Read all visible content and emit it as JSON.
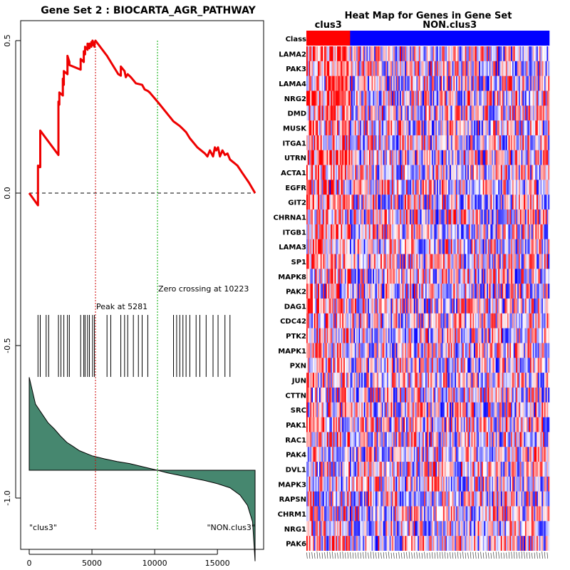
{
  "chart_data": [
    {
      "type": "line",
      "title": "Gene Set  2 : BIOCARTA_AGR_PATHWAY",
      "xlim": [
        0,
        18000
      ],
      "ylim": [
        -1.1,
        0.55
      ],
      "x_ticks": [
        0,
        5000,
        10000,
        15000
      ],
      "x_tick_labels": [
        "0",
        "5000",
        "10000",
        "15000"
      ],
      "y_ticks": [
        0.5,
        0.0,
        -0.5,
        -1.0
      ],
      "y_tick_labels": [
        "0.5",
        "0.0",
        "-0.5",
        "-1.0"
      ],
      "running_es": {
        "x": [
          0,
          700,
          700,
          820,
          820,
          880,
          880,
          2330,
          2330,
          2400,
          2400,
          2680,
          2680,
          2760,
          2760,
          3050,
          3050,
          3200,
          3200,
          4100,
          4100,
          4350,
          4350,
          4450,
          4450,
          4650,
          4650,
          4800,
          4800,
          4950,
          4950,
          5050,
          5050,
          5200,
          5200,
          5281,
          5281,
          6200,
          7100,
          7300,
          7300,
          7600,
          7700,
          7850,
          8100,
          8300,
          8500,
          9000,
          9200,
          9450,
          9600,
          10223,
          11500,
          12000,
          12250,
          12500,
          12800,
          13400,
          14000,
          14200,
          14400,
          14650,
          14800,
          14900,
          15050,
          15200,
          15400,
          15600,
          15800,
          16000,
          16300,
          16600,
          17000,
          17500,
          18000
        ],
        "y": [
          0.0,
          -0.04,
          0.09,
          0.085,
          0.09,
          0.085,
          0.205,
          0.125,
          0.3,
          0.29,
          0.33,
          0.32,
          0.375,
          0.355,
          0.4,
          0.39,
          0.45,
          0.43,
          0.42,
          0.405,
          0.44,
          0.43,
          0.465,
          0.455,
          0.48,
          0.47,
          0.49,
          0.475,
          0.49,
          0.48,
          0.495,
          0.485,
          0.5,
          0.48,
          0.49,
          0.5,
          0.5,
          0.45,
          0.39,
          0.385,
          0.415,
          0.4,
          0.38,
          0.39,
          0.38,
          0.37,
          0.36,
          0.355,
          0.34,
          0.335,
          0.33,
          0.3,
          0.235,
          0.22,
          0.21,
          0.2,
          0.18,
          0.15,
          0.13,
          0.12,
          0.14,
          0.12,
          0.15,
          0.14,
          0.15,
          0.12,
          0.14,
          0.125,
          0.13,
          0.11,
          0.1,
          0.09,
          0.065,
          0.035,
          0.0
        ]
      },
      "baseline": 0.0,
      "peak": {
        "x": 5281,
        "label": "Peak at 5281"
      },
      "zero_crossing": {
        "x": 10223,
        "label": "Zero crossing at 10223"
      },
      "hit_positions": [
        700,
        880,
        1350,
        1550,
        2330,
        2530,
        2760,
        3050,
        3200,
        4100,
        4350,
        4450,
        4650,
        4800,
        5050,
        5200,
        6200,
        6500,
        7300,
        7600,
        7850,
        8300,
        8700,
        9000,
        9450,
        11500,
        11750,
        12000,
        12250,
        12500,
        12800,
        13300,
        13600,
        14100,
        14650,
        15050,
        15600,
        16000
      ],
      "rank_metric": {
        "x": [
          0,
          500,
          1000,
          1500,
          2000,
          2500,
          3000,
          3500,
          4000,
          5000,
          6000,
          7000,
          8000,
          9000,
          10223,
          11000,
          12000,
          13000,
          14000,
          15000,
          16000,
          16800,
          17400,
          17800,
          18000
        ],
        "y": [
          0.9,
          0.64,
          0.55,
          0.46,
          0.4,
          0.33,
          0.27,
          0.23,
          0.19,
          0.14,
          0.11,
          0.085,
          0.065,
          0.035,
          0.0,
          -0.025,
          -0.05,
          -0.075,
          -0.1,
          -0.13,
          -0.17,
          -0.24,
          -0.34,
          -0.5,
          -0.88
        ]
      },
      "left_label": "\"clus3\"",
      "right_label": "\"NON.clus3\"",
      "line_color": "#ee0000",
      "fill_color": "#46876f"
    },
    {
      "type": "heatmap",
      "title": "Heat Map for Genes in Gene Set",
      "class_row_label": "Class",
      "classes": [
        {
          "name": "clus3",
          "color": "#ff0000",
          "fraction": 0.18
        },
        {
          "name": "NON.clus3",
          "color": "#0000ff",
          "fraction": 0.82
        }
      ],
      "genes": [
        "LAMA2",
        "PAK3",
        "LAMA4",
        "NRG2",
        "DMD",
        "MUSK",
        "ITGA1",
        "UTRN",
        "ACTA1",
        "EGFR",
        "GIT2",
        "CHRNA1",
        "ITGB1",
        "LAMA3",
        "SP1",
        "MAPK8",
        "PAK2",
        "DAG1",
        "CDC42",
        "PTK2",
        "MAPK1",
        "PXN",
        "JUN",
        "CTTN",
        "SRC",
        "PAK1",
        "RAC1",
        "PAK4",
        "DVL1",
        "MAPK3",
        "RAPSN",
        "CHRM1",
        "NRG1",
        "PAK6"
      ],
      "row_bias": [
        0.55,
        0.5,
        0.45,
        0.55,
        0.45,
        0.2,
        0.45,
        0.5,
        0.4,
        0.25,
        0.35,
        0.1,
        0.45,
        0.3,
        0.3,
        0.2,
        0.15,
        0.3,
        0.1,
        0.25,
        0.2,
        0.15,
        0.1,
        0.1,
        0.05,
        0.1,
        0.2,
        0.05,
        0.05,
        0.1,
        0.0,
        0.1,
        0.15,
        0.1
      ],
      "columns": 190,
      "low_color": "#0000ff",
      "mid_color": "#ffffff",
      "high_color": "#ff0000"
    }
  ]
}
